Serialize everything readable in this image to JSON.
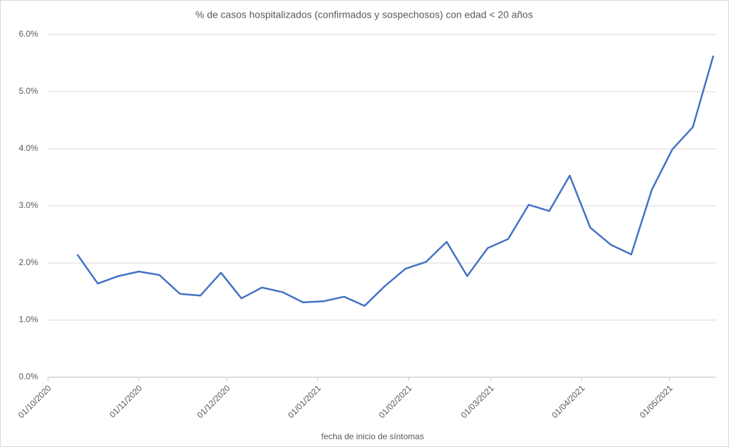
{
  "chart_data": {
    "type": "line",
    "title": "% de casos hospitalizados (confirmados y sospechosos) con edad < 20 años",
    "x_label": "fecha de inicio de síntomas",
    "x": [
      "2020-10-11",
      "2020-10-18",
      "2020-10-25",
      "2020-11-01",
      "2020-11-08",
      "2020-11-15",
      "2020-11-22",
      "2020-11-29",
      "2020-12-06",
      "2020-12-13",
      "2020-12-20",
      "2020-12-27",
      "2021-01-03",
      "2021-01-10",
      "2021-01-17",
      "2021-01-24",
      "2021-01-31",
      "2021-02-07",
      "2021-02-14",
      "2021-02-21",
      "2021-02-28",
      "2021-03-07",
      "2021-03-14",
      "2021-03-21",
      "2021-03-28",
      "2021-04-04",
      "2021-04-11",
      "2021-04-18",
      "2021-04-25",
      "2021-05-02",
      "2021-05-09",
      "2021-05-16"
    ],
    "series": [
      {
        "color": "#4472c4",
        "values": [
          2.15,
          1.64,
          1.77,
          1.85,
          1.79,
          1.46,
          1.43,
          1.83,
          1.38,
          1.57,
          1.49,
          1.31,
          1.33,
          1.41,
          1.25,
          1.6,
          1.9,
          2.02,
          2.37,
          1.77,
          2.26,
          2.42,
          3.02,
          2.91,
          3.53,
          2.62,
          2.32,
          2.15,
          3.28,
          3.99,
          4.38,
          5.63
        ]
      }
    ],
    "xlim": [
      "2020-10-01",
      "2021-05-17"
    ],
    "xticks": [
      {
        "value": "2020-10-01",
        "label": "01/10/2020"
      },
      {
        "value": "2020-11-01",
        "label": "01/11/2020"
      },
      {
        "value": "2020-12-01",
        "label": "01/12/2020"
      },
      {
        "value": "2021-01-01",
        "label": "01/01/2021"
      },
      {
        "value": "2021-02-01",
        "label": "01/02/2021"
      },
      {
        "value": "2021-03-01",
        "label": "01/03/2021"
      },
      {
        "value": "2021-04-01",
        "label": "01/04/2021"
      },
      {
        "value": "2021-05-01",
        "label": "01/05/2021"
      }
    ],
    "ylim": [
      0,
      6
    ],
    "yticks": [
      {
        "value": 0,
        "label": "0.0%"
      },
      {
        "value": 1,
        "label": "1.0%"
      },
      {
        "value": 2,
        "label": "2.0%"
      },
      {
        "value": 3,
        "label": "3.0%"
      },
      {
        "value": 4,
        "label": "4.0%"
      },
      {
        "value": 5,
        "label": "5.0%"
      },
      {
        "value": 6,
        "label": "6.0%"
      }
    ],
    "grid": true
  }
}
